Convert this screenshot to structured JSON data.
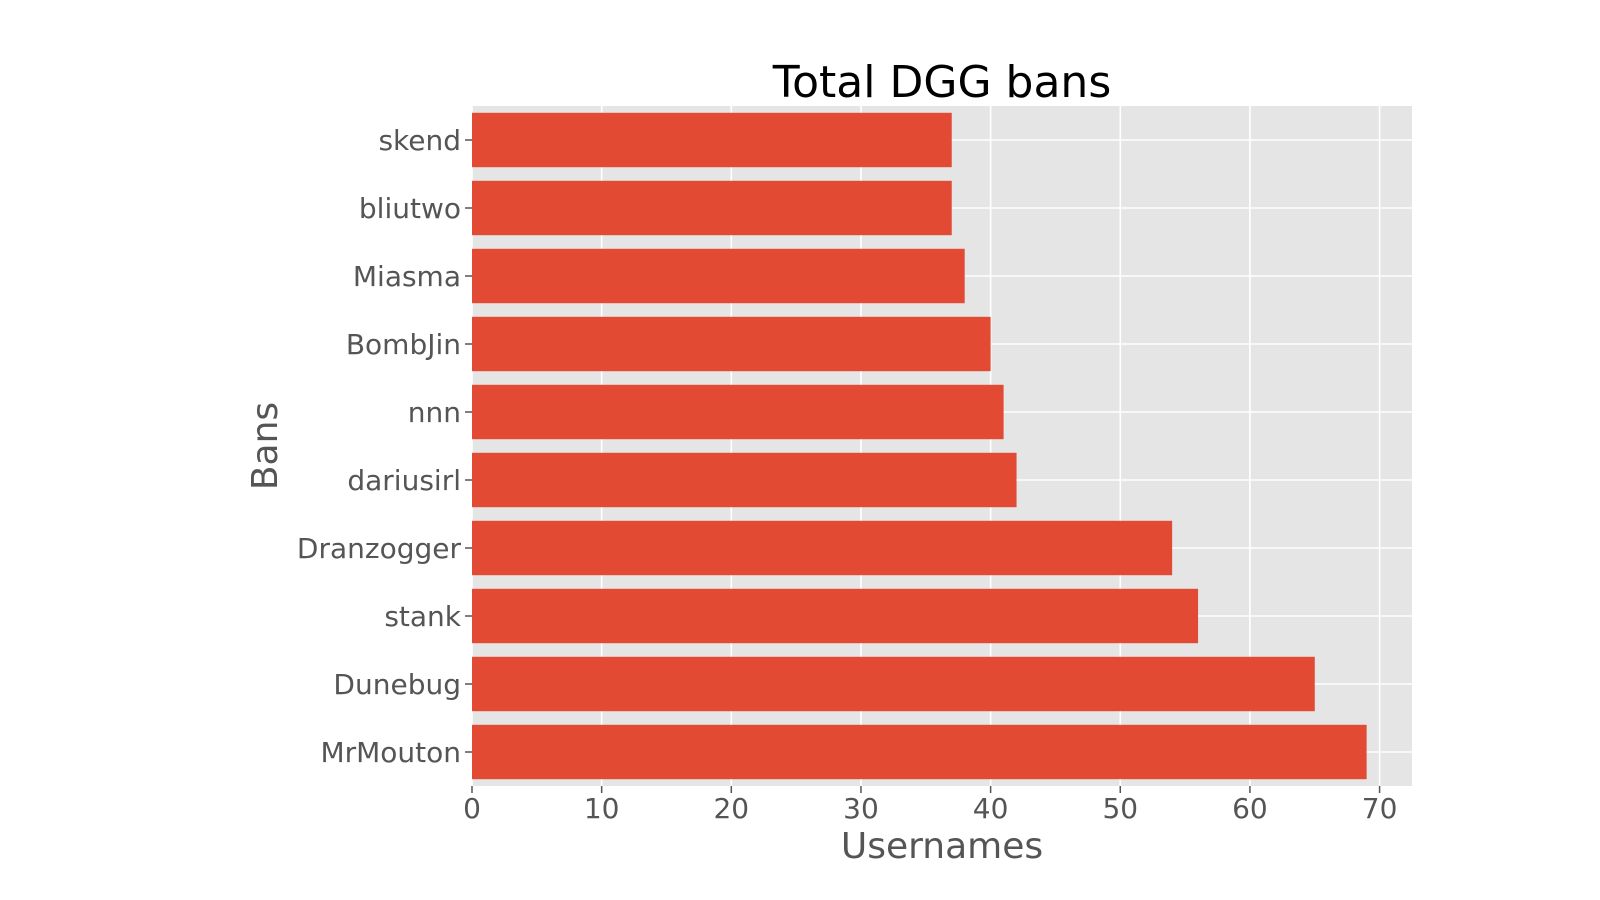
{
  "chart_data": {
    "type": "bar",
    "orientation": "horizontal",
    "title": "Total DGG bans",
    "xlabel": "Usernames",
    "ylabel": "Bans",
    "categories": [
      "MrMouton",
      "Dunebug",
      "stank",
      "Dranzogger",
      "dariusirl",
      "nnn",
      "BombJin",
      "Miasma",
      "bliutwo",
      "skend"
    ],
    "values": [
      69,
      65,
      56,
      54,
      42,
      41,
      40,
      38,
      37,
      37
    ],
    "xlim": [
      0,
      72.5
    ],
    "xticks": [
      0,
      10,
      20,
      30,
      40,
      50,
      60,
      70
    ],
    "grid": true,
    "colors": {
      "bar": "#e24a33",
      "plot_background": "#e5e5e5",
      "grid": "#ffffff"
    }
  }
}
